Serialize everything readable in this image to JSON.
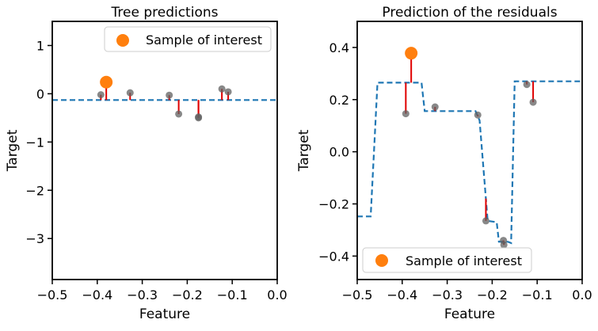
{
  "colors": {
    "data_points": "#606060",
    "highlight": "#ff7f0e",
    "residual_lines": "#e00000",
    "prediction_line": "#1f77b4",
    "axes": "#000000"
  },
  "chart_data": [
    {
      "type": "scatter",
      "title": "Tree predictions",
      "xlabel": "Feature",
      "ylabel": "Target",
      "xlim": [
        -0.5,
        0.0
      ],
      "ylim": [
        -3.85,
        1.5
      ],
      "xticks": [
        -0.5,
        -0.4,
        -0.3,
        -0.2,
        -0.1,
        0.0
      ],
      "xtick_labels": [
        "−0.5",
        "−0.4",
        "−0.3",
        "−0.2",
        "−0.1",
        "0.0"
      ],
      "yticks": [
        1,
        0,
        -1,
        -2,
        -3
      ],
      "ytick_labels": [
        "1",
        "0",
        "−1",
        "−2",
        "−3"
      ],
      "grid": false,
      "legend": {
        "position": "top-right",
        "entries": [
          "Sample of interest"
        ]
      },
      "points": [
        {
          "x": -0.392,
          "y": -0.02
        },
        {
          "x": -0.327,
          "y": 0.02
        },
        {
          "x": -0.24,
          "y": -0.03
        },
        {
          "x": -0.219,
          "y": -0.42
        },
        {
          "x": -0.175,
          "y": -0.48
        },
        {
          "x": -0.175,
          "y": -0.5
        },
        {
          "x": -0.123,
          "y": 0.1
        },
        {
          "x": -0.109,
          "y": 0.04
        }
      ],
      "sample_of_interest": {
        "x": -0.38,
        "y": 0.24
      },
      "prediction": {
        "style": "dashed",
        "segments": [
          {
            "x": [
              -0.5,
              0.0
            ],
            "y": [
              -0.13,
              -0.13
            ]
          }
        ]
      }
    },
    {
      "type": "scatter",
      "title": "Prediction of the residuals",
      "xlabel": "Feature",
      "ylabel": "Target",
      "xlim": [
        -0.5,
        0.0
      ],
      "ylim": [
        -0.49,
        0.5
      ],
      "xticks": [
        -0.5,
        -0.4,
        -0.3,
        -0.2,
        -0.1,
        0.0
      ],
      "xtick_labels": [
        "−0.5",
        "−0.4",
        "−0.3",
        "−0.2",
        "−0.1",
        "0.0"
      ],
      "yticks": [
        0.4,
        0.2,
        0.0,
        -0.2,
        -0.4
      ],
      "ytick_labels": [
        "0.4",
        "0.2",
        "0.0",
        "−0.2",
        "−0.4"
      ],
      "grid": false,
      "legend": {
        "position": "bottom-left",
        "entries": [
          "Sample of interest"
        ]
      },
      "points": [
        {
          "x": -0.392,
          "y": 0.146
        },
        {
          "x": -0.327,
          "y": 0.172
        },
        {
          "x": -0.232,
          "y": 0.141
        },
        {
          "x": -0.214,
          "y": -0.265
        },
        {
          "x": -0.175,
          "y": -0.34
        },
        {
          "x": -0.174,
          "y": -0.357
        },
        {
          "x": -0.123,
          "y": 0.258
        },
        {
          "x": -0.109,
          "y": 0.19
        }
      ],
      "sample_of_interest": {
        "x": -0.38,
        "y": 0.378
      },
      "prediction": {
        "style": "dashed",
        "x": [
          -0.5,
          -0.47,
          -0.455,
          -0.357,
          -0.35,
          -0.237,
          -0.228,
          -0.21,
          -0.19,
          -0.185,
          -0.165,
          -0.158,
          -0.15,
          0.0
        ],
        "y": [
          -0.248,
          -0.248,
          0.265,
          0.265,
          0.156,
          0.156,
          0.12,
          -0.265,
          -0.27,
          -0.345,
          -0.345,
          -0.35,
          0.27,
          0.27
        ]
      }
    }
  ]
}
